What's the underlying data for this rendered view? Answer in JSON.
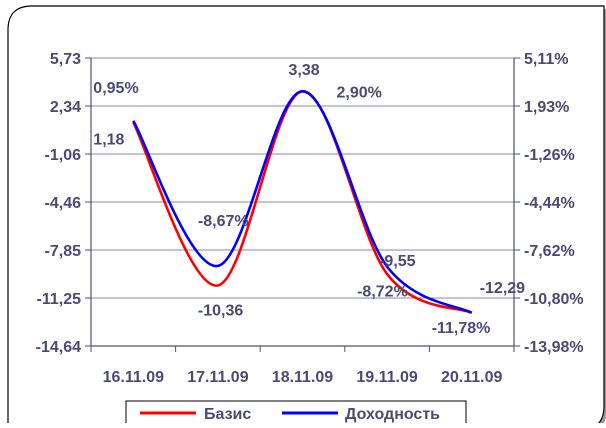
{
  "chart_data": {
    "type": "line",
    "categories": [
      "16.11.09",
      "17.11.09",
      "18.11.09",
      "19.11.09",
      "20.11.09"
    ],
    "left_axis": {
      "ticks": [
        "5,73",
        "2,34",
        "-1,06",
        "-4,46",
        "-7,85",
        "-11,25",
        "-14,64"
      ],
      "ylim": [
        -14.64,
        5.73
      ]
    },
    "right_axis": {
      "ticks": [
        "5,11%",
        "1,93%",
        "-1,26%",
        "-4,44%",
        "-7,62%",
        "-10,80%",
        "-13,98%"
      ],
      "ylim": [
        -13.98,
        5.11
      ]
    },
    "series": [
      {
        "name": "Базис",
        "color": "#ff0000",
        "axis": "left",
        "values": [
          1.18,
          -10.36,
          3.38,
          -9.55,
          -12.29
        ],
        "labels": [
          "1,18",
          "-10,36",
          "3,38",
          "-9,55",
          "-12,29"
        ]
      },
      {
        "name": "Доходность",
        "color": "#0000ff",
        "axis": "right",
        "values": [
          0.95,
          -8.67,
          2.9,
          -8.72,
          -11.78
        ],
        "labels": [
          "0,95%",
          "-8,67%",
          "2,90%",
          "-8,72%",
          "-11,78%"
        ]
      }
    ],
    "grid": true,
    "legend_position": "bottom-center"
  },
  "colors": {
    "page_bg": "#ffffff",
    "frame_bg": "#ffffff",
    "frame_border": "#000000",
    "frame_shadow": "#9a9a9a",
    "grid_line": "#8a8aa8",
    "axis_line": "#4f4f80",
    "text": "#4a4a74"
  }
}
